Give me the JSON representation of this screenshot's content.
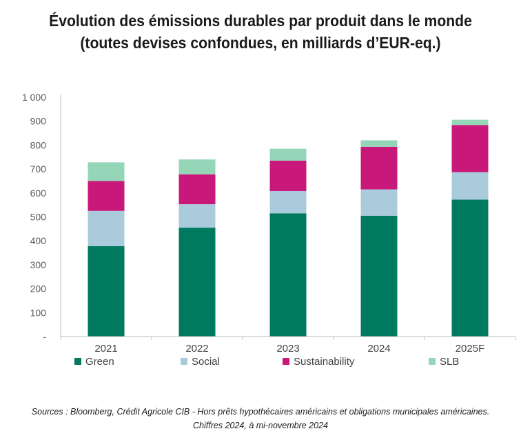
{
  "chart_data": {
    "type": "bar",
    "stacked": true,
    "title_line1": "Évolution des émissions durables par produit dans le monde",
    "title_line2": "(toutes devises confondues, en milliards d’EUR-eq.)",
    "categories": [
      "2021",
      "2022",
      "2023",
      "2024",
      "2025F"
    ],
    "series": [
      {
        "name": "Green",
        "color": "#007a5e",
        "values": [
          378,
          455,
          515,
          505,
          572
        ]
      },
      {
        "name": "Social",
        "color": "#a9cbdc",
        "values": [
          147,
          98,
          93,
          110,
          115
        ]
      },
      {
        "name": "Sustainability",
        "color": "#c8187a",
        "values": [
          125,
          125,
          127,
          178,
          197
        ]
      },
      {
        "name": "SLB",
        "color": "#95d6b9",
        "values": [
          78,
          62,
          50,
          27,
          22
        ]
      }
    ],
    "yticks": [
      "-",
      "100",
      "200",
      "300",
      "400",
      "500",
      "600",
      "700",
      "800",
      "900",
      "1 000"
    ],
    "ylim": [
      0,
      1000
    ],
    "legend_position": "bottom",
    "source_line1": "Sources : Bloomberg, Crédit Agricole CIB - Hors prêts hypothécaires américains et obligations municipales américaines.",
    "source_line2": "Chiffres 2024, à mi-novembre 2024"
  }
}
